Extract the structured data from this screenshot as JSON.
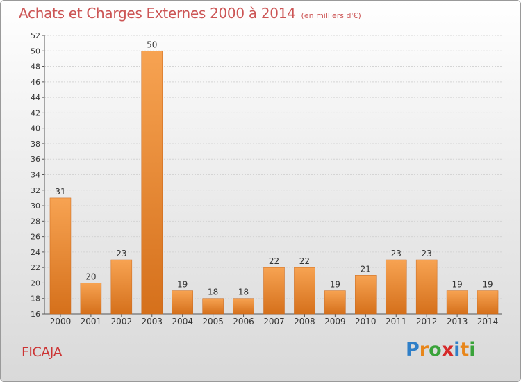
{
  "header": {
    "title": "Achats et Charges Externes 2000 à 2014",
    "unit": "(en milliers d'€)"
  },
  "footer": {
    "commune": "FICAJA",
    "brand": [
      "P",
      "r",
      "o",
      "x",
      "i",
      "t",
      "i"
    ],
    "brand_colors": [
      "#2f7fc8",
      "#e8861a",
      "#3aa33a",
      "#d62a2a",
      "#2f7fc8",
      "#e8861a",
      "#3aa33a"
    ]
  },
  "chart_data": {
    "type": "bar",
    "categories": [
      "2000",
      "2001",
      "2002",
      "2003",
      "2004",
      "2005",
      "2006",
      "2007",
      "2008",
      "2009",
      "2010",
      "2011",
      "2012",
      "2013",
      "2014"
    ],
    "values": [
      31,
      20,
      23,
      50,
      19,
      18,
      18,
      22,
      22,
      19,
      21,
      23,
      23,
      19,
      19
    ],
    "data_labels": [
      "31",
      "20",
      "23",
      "50",
      "19",
      "18",
      "18",
      "22",
      "22",
      "19",
      "21",
      "23",
      "23",
      "19",
      "19"
    ],
    "ylim": [
      16,
      52
    ],
    "yticks": [
      16,
      18,
      20,
      22,
      24,
      26,
      28,
      30,
      32,
      34,
      36,
      38,
      40,
      42,
      44,
      46,
      48,
      50,
      52
    ],
    "grid": true,
    "bar_color_light": "#f7a352",
    "bar_color_dark": "#d5701b"
  }
}
